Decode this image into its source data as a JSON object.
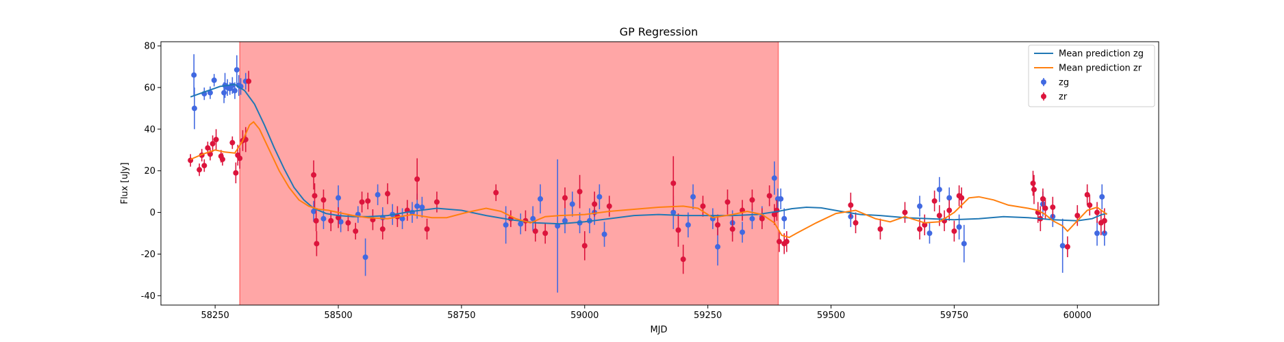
{
  "chart_data": {
    "type": "scatter",
    "title": "GP Regression",
    "xlabel": "MJD",
    "ylabel": "Flux [uJy]",
    "xlim": [
      58140,
      60165
    ],
    "ylim": [
      -44.5,
      82
    ],
    "xticks": [
      58250,
      58500,
      58750,
      59000,
      59250,
      59500,
      59750,
      60000
    ],
    "yticks": [
      -40,
      -20,
      0,
      20,
      40,
      60,
      80
    ],
    "legend_position": "top-right",
    "shaded_region": {
      "x_start": 58300,
      "x_end": 59393,
      "color": "#ff0000",
      "alpha": 0.35
    },
    "lines": [
      {
        "name": "Mean prediction zg",
        "color": "#1f77b4",
        "points": [
          [
            58200,
            55.5
          ],
          [
            58230,
            58
          ],
          [
            58260,
            60.5
          ],
          [
            58290,
            61.5
          ],
          [
            58310,
            58.5
          ],
          [
            58330,
            52
          ],
          [
            58350,
            42
          ],
          [
            58370,
            31
          ],
          [
            58390,
            21
          ],
          [
            58410,
            12
          ],
          [
            58430,
            6
          ],
          [
            58450,
            2
          ],
          [
            58475,
            -0.5
          ],
          [
            58500,
            -1.5
          ],
          [
            58530,
            -2
          ],
          [
            58560,
            -2
          ],
          [
            58600,
            -1.5
          ],
          [
            58650,
            0.5
          ],
          [
            58700,
            2
          ],
          [
            58750,
            1
          ],
          [
            58800,
            -1.5
          ],
          [
            58850,
            -3.5
          ],
          [
            58900,
            -5
          ],
          [
            58950,
            -5.5
          ],
          [
            59000,
            -4.5
          ],
          [
            59050,
            -3
          ],
          [
            59100,
            -1.5
          ],
          [
            59150,
            -1
          ],
          [
            59200,
            -1.5
          ],
          [
            59250,
            -1.5
          ],
          [
            59300,
            -1.5
          ],
          [
            59350,
            -1
          ],
          [
            59393,
            0.5
          ],
          [
            59420,
            1.8
          ],
          [
            59450,
            2.5
          ],
          [
            59480,
            2.2
          ],
          [
            59520,
            0.5
          ],
          [
            59560,
            -1
          ],
          [
            59600,
            -1.5
          ],
          [
            59650,
            -2.5
          ],
          [
            59700,
            -3
          ],
          [
            59750,
            -3.5
          ],
          [
            59800,
            -3
          ],
          [
            59850,
            -2
          ],
          [
            59900,
            -2.5
          ],
          [
            59950,
            -3.5
          ],
          [
            60000,
            -4
          ],
          [
            60030,
            -3
          ],
          [
            60050,
            -1
          ],
          [
            60060,
            -0.5
          ]
        ]
      },
      {
        "name": "Mean prediction zr",
        "color": "#ff7f0e",
        "points": [
          [
            58200,
            25.5
          ],
          [
            58225,
            28
          ],
          [
            58250,
            30
          ],
          [
            58270,
            29
          ],
          [
            58290,
            28.5
          ],
          [
            58305,
            34
          ],
          [
            58320,
            42
          ],
          [
            58328,
            43.5
          ],
          [
            58340,
            40
          ],
          [
            58360,
            30
          ],
          [
            58380,
            20
          ],
          [
            58400,
            12
          ],
          [
            58420,
            6
          ],
          [
            58440,
            3
          ],
          [
            58460,
            1.5
          ],
          [
            58480,
            1
          ],
          [
            58500,
            0
          ],
          [
            58530,
            -1.5
          ],
          [
            58560,
            -2.5
          ],
          [
            58600,
            -3
          ],
          [
            58650,
            -1
          ],
          [
            58690,
            -2.5
          ],
          [
            58720,
            -2.5
          ],
          [
            58760,
            0
          ],
          [
            58800,
            2
          ],
          [
            58830,
            0.5
          ],
          [
            58860,
            -3
          ],
          [
            58890,
            -5
          ],
          [
            58920,
            -2
          ],
          [
            58950,
            -1.5
          ],
          [
            59000,
            -1
          ],
          [
            59050,
            0.5
          ],
          [
            59100,
            1.5
          ],
          [
            59150,
            2.5
          ],
          [
            59200,
            3
          ],
          [
            59230,
            2
          ],
          [
            59260,
            -2.5
          ],
          [
            59300,
            -1
          ],
          [
            59330,
            0.5
          ],
          [
            59360,
            -1
          ],
          [
            59385,
            -5
          ],
          [
            59400,
            -11
          ],
          [
            59415,
            -12
          ],
          [
            59430,
            -10
          ],
          [
            59470,
            -5
          ],
          [
            59510,
            -0.5
          ],
          [
            59550,
            1
          ],
          [
            59590,
            -3
          ],
          [
            59620,
            -4.5
          ],
          [
            59650,
            -2
          ],
          [
            59690,
            -5
          ],
          [
            59720,
            -4.5
          ],
          [
            59750,
            0
          ],
          [
            59780,
            7
          ],
          [
            59800,
            7.5
          ],
          [
            59830,
            6
          ],
          [
            59860,
            3.5
          ],
          [
            59900,
            2
          ],
          [
            59920,
            1
          ],
          [
            59935,
            -1
          ],
          [
            59950,
            -4
          ],
          [
            59970,
            -6.5
          ],
          [
            59980,
            -9
          ],
          [
            60000,
            -4
          ],
          [
            60020,
            1
          ],
          [
            60040,
            2.5
          ],
          [
            60060,
            -1
          ]
        ]
      }
    ],
    "series": [
      {
        "name": "zg",
        "color": "#4169e1",
        "points": [
          [
            58207,
            66,
            10
          ],
          [
            58208,
            50,
            10
          ],
          [
            58228,
            57,
            3
          ],
          [
            58240,
            57.5,
            3
          ],
          [
            58248,
            63.5,
            3
          ],
          [
            58268,
            57.5,
            5
          ],
          [
            58270,
            61,
            6
          ],
          [
            58275,
            60,
            4
          ],
          [
            58280,
            59.5,
            3
          ],
          [
            58285,
            61,
            4
          ],
          [
            58290,
            58.5,
            4
          ],
          [
            58294,
            68.5,
            7
          ],
          [
            58298,
            61,
            5
          ],
          [
            58302,
            60.5,
            4
          ],
          [
            58312,
            63,
            4
          ],
          [
            58450,
            0.5,
            5
          ],
          [
            58470,
            -3,
            5
          ],
          [
            58500,
            7,
            6
          ],
          [
            58505,
            -4.5,
            5
          ],
          [
            58540,
            -1,
            4
          ],
          [
            58555,
            -21.5,
            9
          ],
          [
            58580,
            8.5,
            5
          ],
          [
            58590,
            -2.5,
            5
          ],
          [
            58610,
            -1,
            5
          ],
          [
            58630,
            -3,
            5
          ],
          [
            58650,
            0,
            5
          ],
          [
            58660,
            3,
            6
          ],
          [
            58670,
            2.5,
            5
          ],
          [
            58840,
            -6,
            9
          ],
          [
            58870,
            -5.5,
            5
          ],
          [
            58895,
            -3,
            6
          ],
          [
            58910,
            6.5,
            7
          ],
          [
            58945,
            -6.5,
            32
          ],
          [
            58960,
            -4,
            6
          ],
          [
            58975,
            4,
            6
          ],
          [
            58990,
            -5,
            5
          ],
          [
            59010,
            -4,
            6
          ],
          [
            59020,
            0,
            6
          ],
          [
            59030,
            7.5,
            6
          ],
          [
            59040,
            -10.5,
            6
          ],
          [
            59180,
            0,
            8
          ],
          [
            59210,
            -6,
            6
          ],
          [
            59220,
            7.5,
            6
          ],
          [
            59260,
            -3,
            5
          ],
          [
            59270,
            -16.5,
            9
          ],
          [
            59300,
            -5,
            6
          ],
          [
            59320,
            -9.5,
            5
          ],
          [
            59340,
            -3,
            5
          ],
          [
            59360,
            -2,
            5
          ],
          [
            59385,
            16.5,
            8
          ],
          [
            59392,
            6.5,
            5
          ],
          [
            59398,
            6.5,
            5
          ],
          [
            59405,
            -3,
            5
          ],
          [
            59540,
            -2,
            5
          ],
          [
            59680,
            3,
            5
          ],
          [
            59700,
            -10,
            5
          ],
          [
            59720,
            11,
            6
          ],
          [
            59740,
            7,
            5
          ],
          [
            59760,
            -7,
            6
          ],
          [
            59770,
            -15,
            9
          ],
          [
            59930,
            4,
            6
          ],
          [
            59950,
            -2,
            5
          ],
          [
            59970,
            -16,
            13
          ],
          [
            60040,
            -10,
            6
          ],
          [
            60050,
            7.5,
            6
          ],
          [
            60055,
            -10,
            6
          ]
        ]
      },
      {
        "name": "zr",
        "color": "#dc143c",
        "points": [
          [
            58200,
            25,
            3
          ],
          [
            58218,
            20.5,
            3
          ],
          [
            58223,
            27.5,
            3
          ],
          [
            58228,
            22.5,
            3
          ],
          [
            58235,
            31,
            3
          ],
          [
            58240,
            28,
            3
          ],
          [
            58245,
            33,
            4
          ],
          [
            58252,
            35,
            5
          ],
          [
            58262,
            27,
            3
          ],
          [
            58265,
            25.5,
            3
          ],
          [
            58285,
            33.5,
            3
          ],
          [
            58292,
            19,
            5
          ],
          [
            58296,
            27.5,
            5
          ],
          [
            58300,
            26,
            5
          ],
          [
            58306,
            34.5,
            5
          ],
          [
            58312,
            35,
            6
          ],
          [
            58318,
            63,
            5
          ],
          [
            58450,
            18,
            7
          ],
          [
            58452,
            8,
            6
          ],
          [
            58455,
            -4,
            5
          ],
          [
            58456,
            -15,
            6
          ],
          [
            58470,
            6,
            5
          ],
          [
            58485,
            -4,
            5
          ],
          [
            58500,
            -2.5,
            5
          ],
          [
            58520,
            -5,
            4
          ],
          [
            58535,
            -9,
            4
          ],
          [
            58548,
            5,
            5
          ],
          [
            58560,
            5.5,
            4
          ],
          [
            58570,
            -3.5,
            5
          ],
          [
            58590,
            -8,
            5
          ],
          [
            58600,
            9,
            5
          ],
          [
            58620,
            -2,
            5
          ],
          [
            58640,
            1,
            5
          ],
          [
            58660,
            16,
            10
          ],
          [
            58680,
            -8,
            5
          ],
          [
            58700,
            5,
            5
          ],
          [
            58820,
            9.5,
            4
          ],
          [
            58850,
            -3,
            4
          ],
          [
            58880,
            -4,
            5
          ],
          [
            58900,
            -9,
            5
          ],
          [
            58920,
            -10,
            5
          ],
          [
            58960,
            7,
            5
          ],
          [
            58990,
            10,
            8
          ],
          [
            59000,
            -16,
            7
          ],
          [
            59020,
            4,
            6
          ],
          [
            59050,
            3,
            5
          ],
          [
            59180,
            14,
            13
          ],
          [
            59190,
            -8.5,
            8
          ],
          [
            59200,
            -22.5,
            7
          ],
          [
            59240,
            3,
            5
          ],
          [
            59270,
            -6,
            5
          ],
          [
            59290,
            5,
            6
          ],
          [
            59300,
            -8,
            6
          ],
          [
            59320,
            1,
            5
          ],
          [
            59340,
            6,
            5
          ],
          [
            59360,
            -3,
            5
          ],
          [
            59375,
            8,
            5
          ],
          [
            59385,
            -1,
            5
          ],
          [
            59390,
            1,
            5
          ],
          [
            59395,
            -14,
            5
          ],
          [
            59405,
            -15,
            5
          ],
          [
            59410,
            -14,
            5
          ],
          [
            59540,
            3.5,
            6
          ],
          [
            59550,
            -5,
            5
          ],
          [
            59600,
            -8,
            5
          ],
          [
            59650,
            0,
            5
          ],
          [
            59680,
            -8,
            5
          ],
          [
            59690,
            -6,
            5
          ],
          [
            59710,
            5.5,
            5
          ],
          [
            59720,
            -1.5,
            5
          ],
          [
            59730,
            -4,
            5
          ],
          [
            59740,
            1,
            5
          ],
          [
            59750,
            -9,
            5
          ],
          [
            59760,
            8,
            5
          ],
          [
            59765,
            7,
            5
          ],
          [
            59910,
            14,
            6
          ],
          [
            59912,
            11,
            7
          ],
          [
            59920,
            0,
            5
          ],
          [
            59925,
            -3,
            6
          ],
          [
            59930,
            6.5,
            5
          ],
          [
            59935,
            2,
            5
          ],
          [
            59950,
            2.5,
            5
          ],
          [
            59980,
            -16.5,
            5
          ],
          [
            60000,
            -1.5,
            5
          ],
          [
            60020,
            8.5,
            5
          ],
          [
            60025,
            3.5,
            5
          ],
          [
            60040,
            0,
            5
          ],
          [
            60048,
            -5,
            6
          ],
          [
            60055,
            -4,
            6
          ]
        ]
      }
    ]
  }
}
